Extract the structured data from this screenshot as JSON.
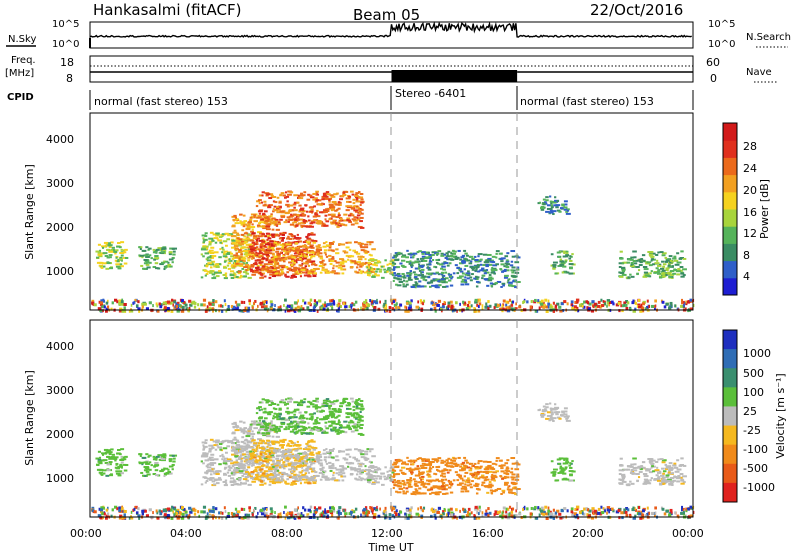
{
  "header": {
    "title": "Hankasalmi (fitACF)",
    "beam": "Beam 05",
    "date": "22/Oct/2016"
  },
  "params": {
    "nsky_label": "N.Sky",
    "nsearch_label": "N.Search",
    "freq_label_1": "Freq.",
    "freq_label_2": "[MHz]",
    "nave_label": "Nave",
    "cpid_label": "CPID",
    "noise_ticks_left": [
      "10^5",
      "10^0"
    ],
    "noise_ticks_right": [
      "10^5",
      "10^0"
    ],
    "freq_ticks": [
      "18",
      "8"
    ],
    "nave_ticks": [
      "60",
      "0"
    ]
  },
  "cpid": {
    "segments": [
      {
        "label": "normal (fast stereo) 153",
        "start": 0,
        "end": 12
      },
      {
        "label": "Stereo -6401",
        "start": 12,
        "end": 17
      },
      {
        "label": "normal (fast stereo) 153",
        "start": 17,
        "end": 24
      }
    ]
  },
  "xaxis": {
    "label": "Time UT",
    "ticks": [
      "00:00",
      "04:00",
      "08:00",
      "12:00",
      "16:00",
      "20:00",
      "00:00"
    ],
    "range_hours": [
      0,
      24
    ]
  },
  "panels": [
    {
      "ylabel": "Slant Range [km]",
      "yticks": [
        "1000",
        "2000",
        "3000",
        "4000"
      ],
      "colorbar": {
        "label": "Power [dB]",
        "ticks": [
          "4",
          "8",
          "12",
          "16",
          "20",
          "24",
          "28"
        ],
        "colors": [
          "#1e1ed2",
          "#2f5fc9",
          "#3a8c63",
          "#55b35a",
          "#a8d43c",
          "#f5d21f",
          "#f2a021",
          "#eb6a1c",
          "#e0301e",
          "#d21a1a"
        ]
      }
    },
    {
      "ylabel": "Slant Range [km]",
      "yticks": [
        "1000",
        "2000",
        "3000",
        "4000"
      ],
      "colorbar": {
        "label": "Velocity [m s⁻¹]",
        "ticks": [
          "1000",
          "500",
          "100",
          "25",
          "-25",
          "-100",
          "-500",
          "-1000"
        ],
        "colors": [
          "#1e2fbf",
          "#2f6db5",
          "#3a8f6f",
          "#5bbf3a",
          "#bcbcbc",
          "#f5b81f",
          "#f08a1a",
          "#e85a18",
          "#e0221e"
        ]
      }
    }
  ],
  "chart_data": {
    "type": "heatmap",
    "x_label": "Time UT",
    "y_label": "Slant Range [km]",
    "x_range_hours": [
      0,
      24
    ],
    "y_range_km": [
      180,
      4500
    ],
    "mode_boundaries_hours": [
      12,
      17
    ],
    "noise_level_regions": [
      {
        "start": 0,
        "end": 12,
        "level": "low"
      },
      {
        "start": 12,
        "end": 17,
        "level": "high"
      },
      {
        "start": 17,
        "end": 24,
        "level": "low"
      }
    ],
    "scatter_regions": [
      {
        "t0": 0.2,
        "t1": 1.4,
        "r0": 1100,
        "r1": 1700,
        "power": 12,
        "velocity": 100
      },
      {
        "t0": 1.9,
        "t1": 3.3,
        "r0": 1100,
        "r1": 1600,
        "power": 10,
        "velocity": 100
      },
      {
        "t0": 4.4,
        "t1": 6.3,
        "r0": 900,
        "r1": 1900,
        "power": 14,
        "velocity": 0
      },
      {
        "t0": 5.6,
        "t1": 7.4,
        "r0": 1000,
        "r1": 2300,
        "power": 20,
        "velocity": 0
      },
      {
        "t0": 6.3,
        "t1": 8.9,
        "r0": 900,
        "r1": 1900,
        "power": 24,
        "velocity": -40
      },
      {
        "t0": 7.2,
        "t1": 11.2,
        "r0": 1000,
        "r1": 1700,
        "power": 20,
        "velocity": 0
      },
      {
        "t0": 6.6,
        "t1": 10.8,
        "r0": 2000,
        "r1": 2800,
        "power": 22,
        "velocity": 100
      },
      {
        "t0": 11.0,
        "t1": 12.0,
        "r0": 900,
        "r1": 1300,
        "power": 14,
        "velocity": 0
      },
      {
        "t0": 12.0,
        "t1": 17.0,
        "r0": 700,
        "r1": 1500,
        "power": 8,
        "velocity": -300
      },
      {
        "t0": 18.3,
        "t1": 19.2,
        "r0": 1000,
        "r1": 1500,
        "power": 10,
        "velocity": 100
      },
      {
        "t0": 21.0,
        "t1": 23.6,
        "r0": 900,
        "r1": 1500,
        "power": 10,
        "velocity": 25
      },
      {
        "t0": 17.8,
        "t1": 19.0,
        "r0": 2300,
        "r1": 2700,
        "power": 8,
        "velocity": 0
      }
    ]
  }
}
